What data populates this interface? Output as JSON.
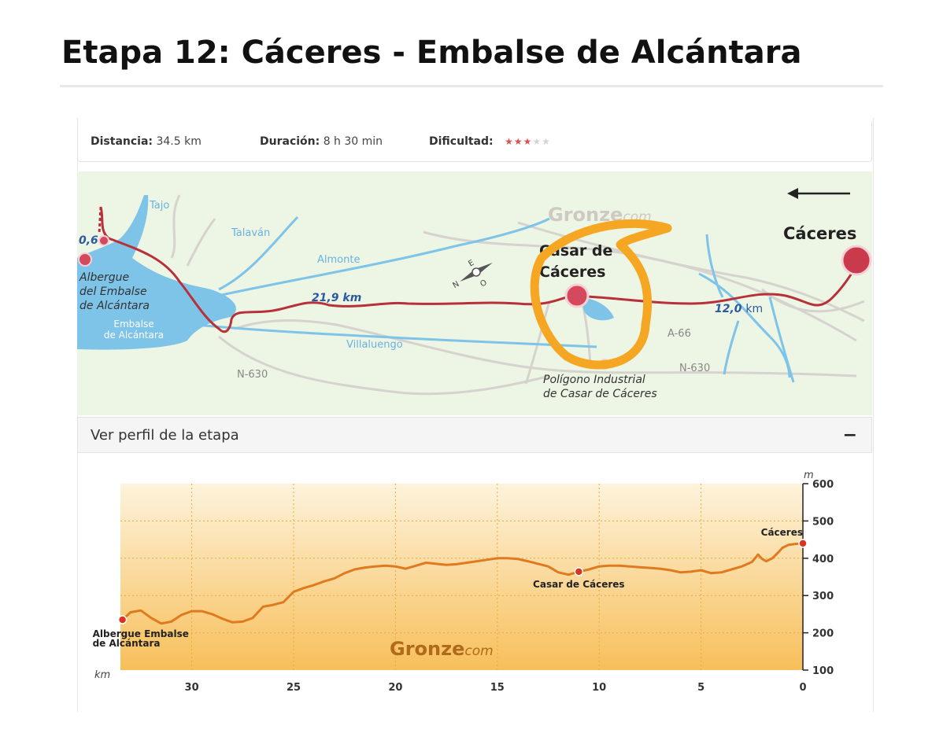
{
  "page": {
    "title": "Etapa 12: Cáceres - Embalse de Alcántara"
  },
  "stats": {
    "distance_label": "Distancia:",
    "distance_value": "34.5 km",
    "duration_label": "Duración:",
    "duration_value": "8 h 30 min",
    "difficulty_label": "Dificultad:",
    "difficulty_stars": 3,
    "difficulty_max": 5
  },
  "map": {
    "watermark_main": "Gronze",
    "watermark_sub": "com",
    "compass_letters": {
      "n": "N",
      "e": "E",
      "o": "O"
    },
    "distance_labels": {
      "left": "0,6",
      "middle": "21,9 km",
      "right_num": "12,0",
      "right_unit": "km"
    },
    "places": {
      "caceres": "Cáceres",
      "casar_line1": "Casar de",
      "casar_line2": "Cáceres",
      "albergue_line1": "Albergue",
      "albergue_line2": "del Embalse",
      "albergue_line3": "de Alcántara",
      "poligono_line1": "Polígono Industrial",
      "poligono_line2": "de Casar de Cáceres"
    },
    "water_labels": {
      "tajo": "Tajo",
      "talavan": "Talaván",
      "almonte": "Almonte",
      "villaluengo": "Villaluengo",
      "embalse_line1": "Embalse",
      "embalse_line2": "de Alcántara"
    },
    "road_labels": {
      "a66": "A-66",
      "n630_left": "N-630",
      "n630_right": "N-630"
    },
    "colors": {
      "background": "#edf5e4",
      "route": "#b8303a",
      "water": "#7ec3e8",
      "roads": "#d6d3cf",
      "annotation": "#f5a623"
    }
  },
  "profile": {
    "header_label": "Ver perfil de la etapa",
    "collapse_symbol": "−"
  },
  "chart_data": {
    "type": "area",
    "title": "",
    "xlabel": "km",
    "ylabel": "m",
    "xlim": [
      33.5,
      0
    ],
    "ylim": [
      100,
      600
    ],
    "x_reversed": true,
    "x_ticks": [
      30,
      25,
      20,
      15,
      10,
      5,
      0
    ],
    "y_ticks": [
      100,
      200,
      300,
      400,
      500,
      600
    ],
    "grid": true,
    "watermark_main": "Gronze",
    "watermark_sub": "com",
    "colors": {
      "line": "#e07a1f",
      "fill_top": "#fdf3dc",
      "fill_bottom": "#f7bf5a",
      "grid": "#f0a838",
      "marker": "#d9341f"
    },
    "series": [
      {
        "x": [
          33.4,
          33,
          32.5,
          32,
          31.5,
          31,
          30.5,
          30,
          29.5,
          29,
          28.5,
          28,
          27.5,
          27,
          26.5,
          26,
          25.5,
          25,
          24.5,
          24,
          23.5,
          23,
          22.5,
          22,
          21.5,
          21,
          20.5,
          20,
          19.5,
          19,
          18.5,
          18,
          17.5,
          17,
          16.5,
          16,
          15.5,
          15,
          14.5,
          14,
          13.5,
          13,
          12.5,
          12,
          11.5,
          11,
          10.5,
          10,
          9.5,
          9,
          8.5,
          8,
          7.5,
          7,
          6.5,
          6,
          5.5,
          5,
          4.5,
          4,
          3.5,
          3,
          2.5,
          2.2,
          2,
          1.8,
          1.5,
          1.2,
          1,
          0.7,
          0.4,
          0
        ],
        "y": [
          235,
          255,
          260,
          240,
          225,
          230,
          248,
          258,
          258,
          250,
          238,
          228,
          230,
          240,
          270,
          275,
          282,
          310,
          320,
          328,
          338,
          346,
          360,
          370,
          375,
          378,
          380,
          378,
          372,
          380,
          388,
          385,
          382,
          384,
          388,
          392,
          396,
          400,
          400,
          398,
          392,
          385,
          378,
          362,
          356,
          364,
          370,
          378,
          380,
          380,
          378,
          376,
          374,
          372,
          368,
          362,
          364,
          368,
          360,
          362,
          370,
          378,
          390,
          410,
          398,
          392,
          400,
          416,
          428,
          436,
          438,
          440
        ]
      }
    ],
    "annotations": [
      {
        "x": 33.4,
        "y": 235,
        "line1": "Albergue Embalse",
        "line2": "de Alcántara"
      },
      {
        "x": 11,
        "y": 364,
        "line1": "Casar de Cáceres",
        "line2": ""
      },
      {
        "x": 0,
        "y": 440,
        "line1": "Cáceres",
        "line2": ""
      }
    ]
  }
}
